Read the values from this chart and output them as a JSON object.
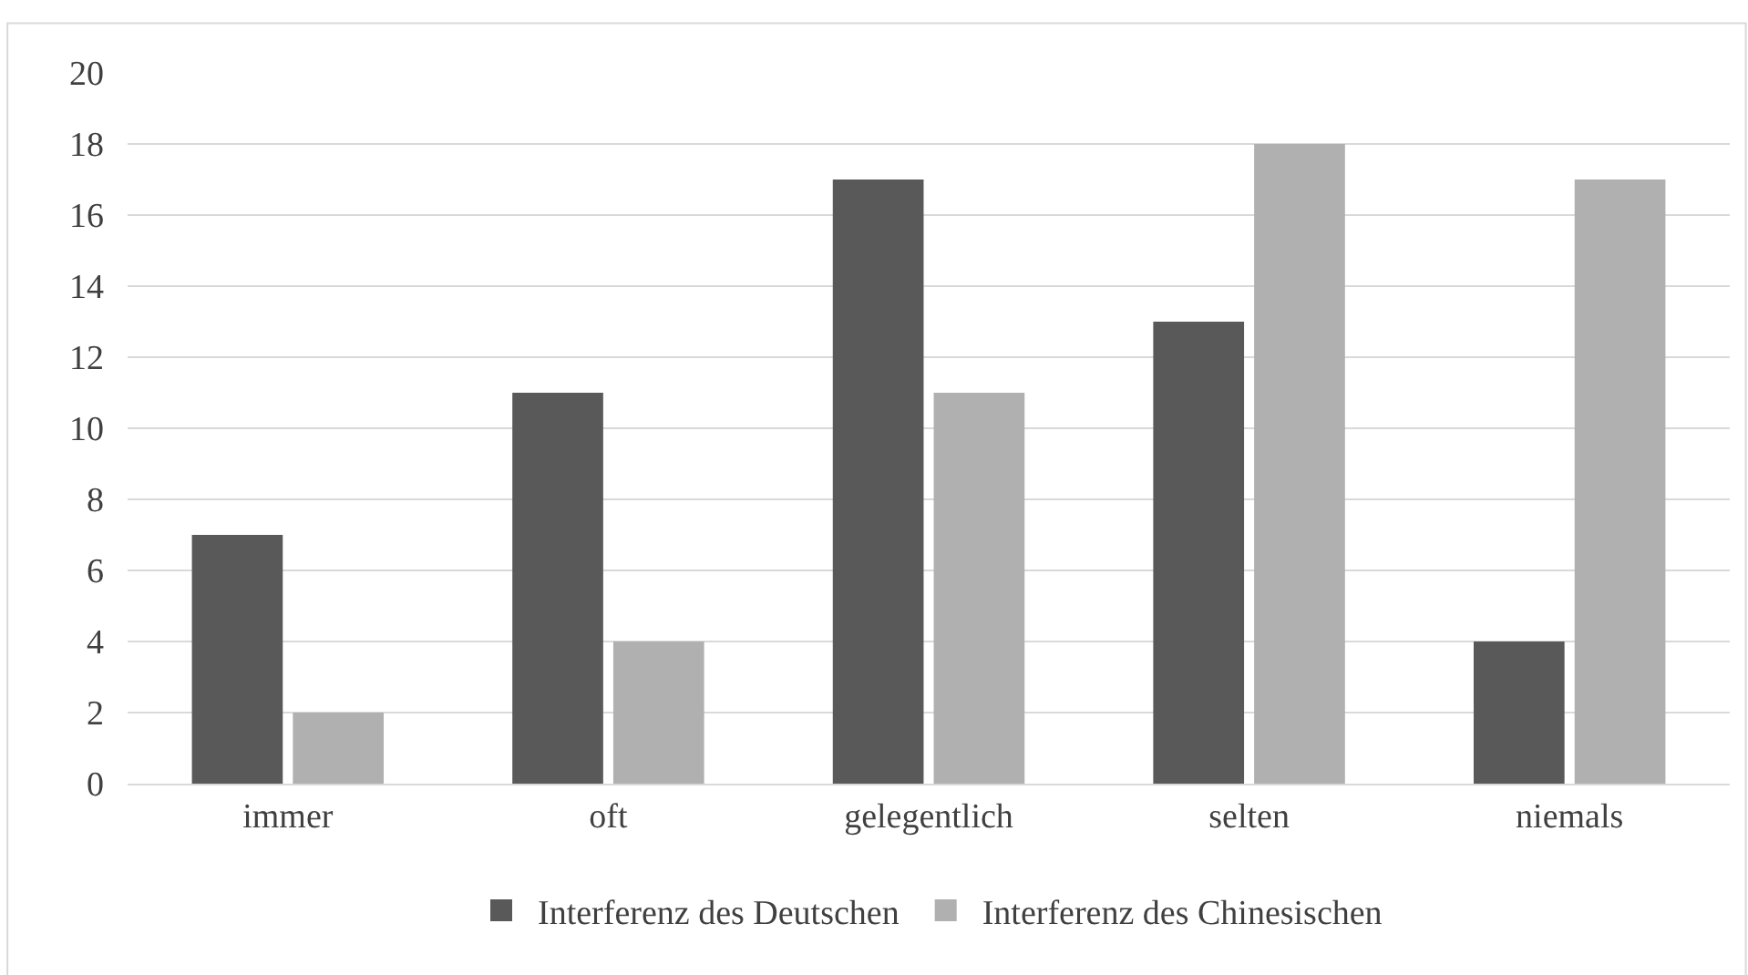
{
  "chart_data": {
    "type": "bar",
    "categories": [
      "immer",
      "oft",
      "gelegentlich",
      "selten",
      "niemals"
    ],
    "series": [
      {
        "name": "Interferenz des Deutschen",
        "color": "#595959",
        "values": [
          7,
          11,
          17,
          13,
          4
        ]
      },
      {
        "name": "Interferenz des Chinesischen",
        "color": "#b0b0b0",
        "values": [
          2,
          4,
          11,
          18,
          17
        ]
      }
    ],
    "ylim": [
      0,
      20
    ],
    "yticks": [
      0,
      2,
      4,
      6,
      8,
      10,
      12,
      14,
      16,
      18,
      20
    ],
    "grid": "y",
    "legend": "bottom"
  }
}
